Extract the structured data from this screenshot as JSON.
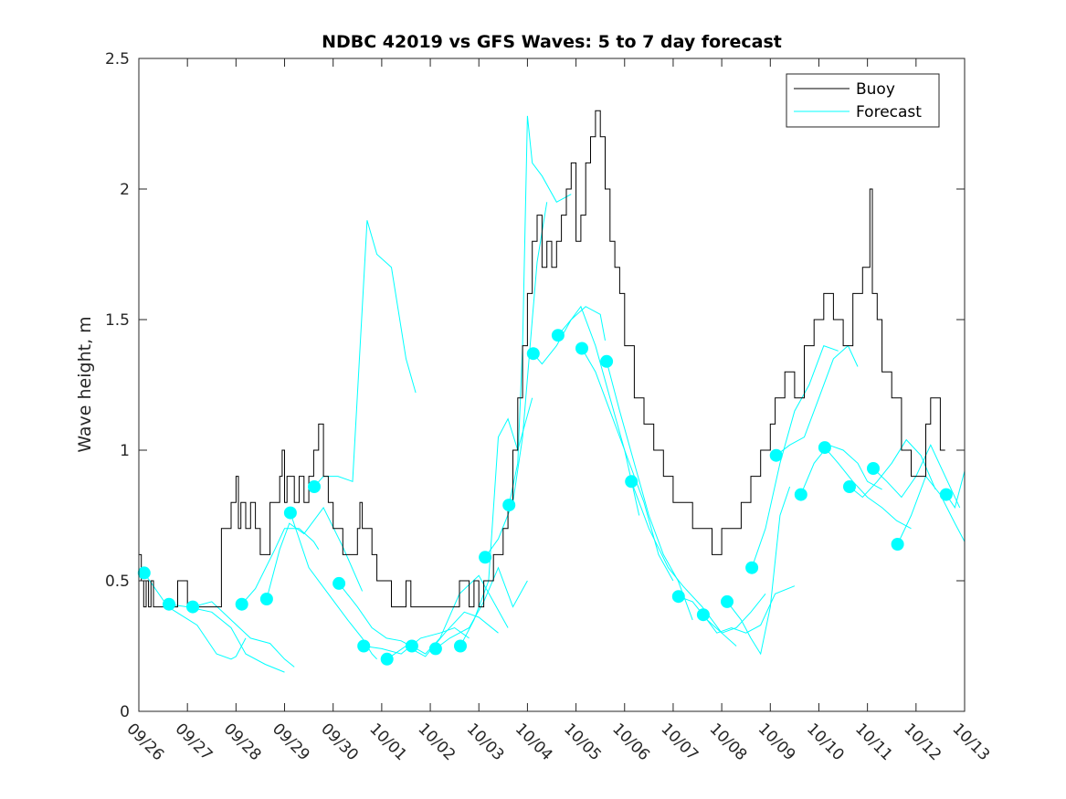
{
  "chart_data": {
    "type": "line",
    "title": "NDBC 42019 vs GFS Waves: 5 to 7 day forecast",
    "xlabel": "",
    "ylabel": "Wave height, m",
    "xlim_days": [
      0,
      17
    ],
    "ylim": [
      0,
      2.5
    ],
    "yticks": [
      0,
      0.5,
      1,
      1.5,
      2,
      2.5
    ],
    "ytick_labels": [
      "0",
      "0.5",
      "1",
      "1.5",
      "2",
      "2.5"
    ],
    "xtick_labels": [
      "09/26",
      "09/27",
      "09/28",
      "09/29",
      "09/30",
      "10/01",
      "10/02",
      "10/03",
      "10/04",
      "10/05",
      "10/06",
      "10/07",
      "10/08",
      "10/09",
      "10/10",
      "10/11",
      "10/12",
      "10/13"
    ],
    "grid": false,
    "legend": {
      "placement": "top-right",
      "entries": [
        {
          "label": "Buoy",
          "color": "#000000"
        },
        {
          "label": "Forecast",
          "color": "#00ffff"
        }
      ]
    },
    "colors": {
      "buoy": "#000000",
      "forecast": "#00ffff",
      "marker": "#00ffff"
    },
    "buoy": {
      "name": "Buoy",
      "x_days": [
        0,
        0.05,
        0.1,
        0.15,
        0.2,
        0.25,
        0.3,
        0.4,
        0.8,
        1.0,
        1.4,
        1.7,
        1.9,
        2.0,
        2.05,
        2.1,
        2.2,
        2.3,
        2.4,
        2.5,
        2.6,
        2.7,
        2.9,
        2.95,
        3.0,
        3.05,
        3.1,
        3.2,
        3.3,
        3.4,
        3.5,
        3.6,
        3.7,
        3.8,
        3.9,
        4.0,
        4.2,
        4.4,
        4.5,
        4.55,
        4.6,
        4.8,
        4.9,
        5.0,
        5.2,
        5.4,
        5.5,
        5.6,
        5.8,
        6.0,
        6.4,
        6.6,
        6.8,
        6.9,
        7.0,
        7.1,
        7.3,
        7.5,
        7.6,
        7.7,
        7.8,
        7.9,
        8.0,
        8.1,
        8.2,
        8.3,
        8.4,
        8.5,
        8.6,
        8.7,
        8.8,
        8.9,
        9.0,
        9.1,
        9.2,
        9.3,
        9.4,
        9.5,
        9.6,
        9.7,
        9.8,
        9.9,
        10.0,
        10.2,
        10.4,
        10.6,
        10.8,
        11.0,
        11.2,
        11.4,
        11.6,
        11.8,
        12.0,
        12.2,
        12.4,
        12.6,
        12.8,
        13.0,
        13.1,
        13.3,
        13.5,
        13.7,
        13.9,
        14.1,
        14.3,
        14.5,
        14.7,
        14.9,
        15.05,
        15.1,
        15.2,
        15.3,
        15.5,
        15.7,
        15.9,
        16.1,
        16.2,
        16.3,
        16.5,
        16.6
      ],
      "values": [
        0.6,
        0.5,
        0.4,
        0.5,
        0.4,
        0.5,
        0.4,
        0.4,
        0.5,
        0.4,
        0.4,
        0.7,
        0.8,
        0.9,
        0.7,
        0.8,
        0.7,
        0.8,
        0.7,
        0.6,
        0.6,
        0.8,
        0.9,
        1.0,
        0.8,
        0.9,
        0.9,
        0.8,
        0.9,
        0.8,
        0.9,
        1.0,
        1.1,
        0.9,
        0.8,
        0.7,
        0.6,
        0.6,
        0.7,
        0.8,
        0.7,
        0.6,
        0.5,
        0.5,
        0.4,
        0.4,
        0.5,
        0.4,
        0.4,
        0.4,
        0.4,
        0.5,
        0.4,
        0.5,
        0.4,
        0.5,
        0.6,
        0.7,
        0.8,
        1.0,
        1.2,
        1.4,
        1.6,
        1.8,
        1.9,
        1.7,
        1.8,
        1.7,
        1.8,
        1.9,
        2.0,
        2.1,
        1.8,
        1.9,
        2.1,
        2.2,
        2.3,
        2.2,
        2.0,
        1.8,
        1.7,
        1.6,
        1.4,
        1.2,
        1.1,
        1.0,
        0.9,
        0.8,
        0.8,
        0.7,
        0.7,
        0.6,
        0.7,
        0.7,
        0.8,
        0.9,
        1.0,
        1.1,
        1.2,
        1.3,
        1.2,
        1.4,
        1.5,
        1.6,
        1.5,
        1.4,
        1.6,
        1.7,
        2.0,
        1.6,
        1.5,
        1.3,
        1.2,
        1.0,
        0.9,
        0.9,
        1.1,
        1.2,
        1.0,
        1.0
      ]
    },
    "forecast_segments": [
      {
        "x_days": [
          0.11,
          0.6,
          1.2,
          1.6,
          1.9,
          2.0,
          2.2
        ],
        "values": [
          0.53,
          0.4,
          0.33,
          0.22,
          0.2,
          0.21,
          0.28
        ]
      },
      {
        "x_days": [
          0.62,
          1.0,
          1.5,
          1.9,
          2.2,
          2.6,
          3.0
        ],
        "values": [
          0.41,
          0.4,
          0.38,
          0.32,
          0.22,
          0.18,
          0.15
        ]
      },
      {
        "x_days": [
          1.11,
          1.5,
          1.9,
          2.3,
          2.7,
          3.0,
          3.2
        ],
        "values": [
          0.4,
          0.42,
          0.35,
          0.28,
          0.26,
          0.2,
          0.17
        ]
      },
      {
        "x_days": [
          2.12,
          2.4,
          2.8,
          3.0,
          3.3,
          3.6,
          3.7
        ],
        "values": [
          0.41,
          0.47,
          0.62,
          0.7,
          0.7,
          0.65,
          0.62
        ]
      },
      {
        "x_days": [
          2.63,
          2.9,
          3.1,
          3.4,
          3.8,
          4.2,
          4.6
        ],
        "values": [
          0.43,
          0.62,
          0.72,
          0.68,
          0.78,
          0.63,
          0.46
        ]
      },
      {
        "x_days": [
          3.12,
          3.5,
          3.9,
          4.3,
          4.6,
          4.8,
          4.9
        ],
        "values": [
          0.76,
          0.55,
          0.45,
          0.35,
          0.28,
          0.22,
          0.2
        ]
      },
      {
        "x_days": [
          3.61,
          3.8,
          4.1,
          4.4,
          4.7,
          4.9,
          5.2,
          5.5,
          5.7
        ],
        "values": [
          0.86,
          0.9,
          0.9,
          0.88,
          1.88,
          1.75,
          1.7,
          1.35,
          1.22
        ]
      },
      {
        "x_days": [
          4.12,
          4.5,
          4.8,
          5.1,
          5.4,
          5.6
        ],
        "values": [
          0.49,
          0.4,
          0.32,
          0.28,
          0.27,
          0.25
        ]
      },
      {
        "x_days": [
          4.63,
          5.0,
          5.4,
          5.8,
          6.2,
          6.5,
          6.8
        ],
        "values": [
          0.25,
          0.24,
          0.22,
          0.28,
          0.3,
          0.32,
          0.28
        ]
      },
      {
        "x_days": [
          5.11,
          5.5,
          5.9,
          6.3,
          6.7,
          7.0,
          7.4
        ],
        "values": [
          0.2,
          0.25,
          0.21,
          0.3,
          0.38,
          0.36,
          0.3
        ]
      },
      {
        "x_days": [
          5.62,
          5.9,
          6.2,
          6.6,
          7.0,
          7.3,
          7.6
        ],
        "values": [
          0.25,
          0.22,
          0.28,
          0.45,
          0.52,
          0.42,
          0.32
        ]
      },
      {
        "x_days": [
          6.11,
          6.4,
          6.8,
          7.1,
          7.4,
          7.7,
          8.0
        ],
        "values": [
          0.24,
          0.28,
          0.32,
          0.42,
          0.55,
          0.4,
          0.5
        ]
      },
      {
        "x_days": [
          6.62,
          6.9,
          7.2,
          7.4,
          7.6,
          7.8,
          8.1
        ],
        "values": [
          0.25,
          0.35,
          0.5,
          1.05,
          1.12,
          1.0,
          1.2
        ]
      },
      {
        "x_days": [
          7.13,
          7.4,
          7.7,
          7.9,
          8.1,
          8.2,
          8.4
        ],
        "values": [
          0.59,
          0.66,
          0.8,
          1.05,
          1.5,
          1.72,
          1.95
        ]
      },
      {
        "x_days": [
          7.62,
          7.8,
          7.9,
          8.0,
          8.1,
          8.3,
          8.6,
          8.9
        ],
        "values": [
          0.79,
          0.95,
          1.4,
          2.28,
          2.1,
          2.05,
          1.95,
          1.98
        ]
      },
      {
        "x_days": [
          8.12,
          8.3,
          8.6,
          8.9,
          9.2,
          9.5,
          9.6
        ],
        "values": [
          1.37,
          1.33,
          1.4,
          1.5,
          1.55,
          1.52,
          1.42
        ]
      },
      {
        "x_days": [
          8.63,
          8.9,
          9.1,
          9.4,
          9.7,
          10.0,
          10.3
        ],
        "values": [
          1.44,
          1.5,
          1.55,
          1.4,
          1.2,
          1.0,
          0.75
        ]
      },
      {
        "x_days": [
          9.12,
          9.4,
          9.7,
          10.0,
          10.4,
          10.7,
          11.0
        ],
        "values": [
          1.39,
          1.3,
          1.15,
          1.0,
          0.8,
          0.6,
          0.5
        ]
      },
      {
        "x_days": [
          9.63,
          9.9,
          10.2,
          10.5,
          10.8,
          11.1,
          11.4
        ],
        "values": [
          1.34,
          1.15,
          0.95,
          0.75,
          0.6,
          0.5,
          0.35
        ]
      },
      {
        "x_days": [
          10.14,
          10.5,
          10.9,
          11.2,
          11.6,
          12.0,
          12.3
        ],
        "values": [
          0.88,
          0.7,
          0.55,
          0.48,
          0.4,
          0.3,
          0.25
        ]
      },
      {
        "x_days": [
          11.11,
          11.4,
          11.7,
          12.0,
          12.3,
          12.6,
          12.9
        ],
        "values": [
          0.44,
          0.42,
          0.35,
          0.3,
          0.32,
          0.38,
          0.45
        ]
      },
      {
        "x_days": [
          11.62,
          11.9,
          12.2,
          12.5,
          12.8,
          13.1,
          13.5
        ],
        "values": [
          0.37,
          0.3,
          0.32,
          0.3,
          0.33,
          0.45,
          0.48
        ]
      },
      {
        "x_days": [
          12.11,
          12.4,
          12.6,
          12.8,
          13.0,
          13.2,
          13.4
        ],
        "values": [
          0.42,
          0.35,
          0.28,
          0.22,
          0.4,
          0.75,
          0.86
        ]
      },
      {
        "x_days": [
          12.62,
          12.9,
          13.2,
          13.5,
          13.8,
          14.1,
          14.4
        ],
        "values": [
          0.55,
          0.7,
          0.95,
          1.15,
          1.25,
          1.4,
          1.38
        ]
      },
      {
        "x_days": [
          13.12,
          13.4,
          13.7,
          14.0,
          14.3,
          14.6,
          14.8
        ],
        "values": [
          0.98,
          1.02,
          1.05,
          1.2,
          1.35,
          1.4,
          1.32
        ]
      },
      {
        "x_days": [
          13.63,
          13.9,
          14.2,
          14.5,
          14.8,
          15.0,
          15.3
        ],
        "values": [
          0.83,
          0.95,
          1.02,
          1.0,
          0.95,
          0.88,
          0.85
        ]
      },
      {
        "x_days": [
          14.12,
          14.4,
          14.7,
          15.0,
          15.3,
          15.6,
          15.9
        ],
        "values": [
          1.01,
          0.95,
          0.88,
          0.82,
          0.78,
          0.73,
          0.7
        ]
      },
      {
        "x_days": [
          14.63,
          14.9,
          15.2,
          15.5,
          15.8,
          16.1,
          16.4
        ],
        "values": [
          0.86,
          0.82,
          0.88,
          0.95,
          1.04,
          0.98,
          0.85
        ]
      },
      {
        "x_days": [
          15.12,
          15.4,
          15.7,
          16.0,
          16.3,
          16.6,
          16.9
        ],
        "values": [
          0.93,
          0.88,
          0.82,
          0.9,
          1.02,
          0.9,
          0.78
        ]
      },
      {
        "x_days": [
          15.62,
          15.9,
          16.2,
          16.5,
          16.8,
          17.0
        ],
        "values": [
          0.64,
          0.75,
          0.9,
          0.83,
          0.72,
          0.65
        ]
      },
      {
        "x_days": [
          16.62,
          16.8,
          17.0
        ],
        "values": [
          0.83,
          0.78,
          0.92
        ]
      }
    ],
    "markers": {
      "x_days": [
        0.11,
        0.62,
        1.11,
        2.12,
        2.63,
        3.12,
        3.61,
        4.12,
        4.63,
        5.11,
        5.62,
        6.11,
        6.62,
        7.13,
        7.62,
        8.12,
        8.63,
        9.12,
        9.63,
        10.14,
        11.11,
        11.62,
        12.11,
        12.62,
        13.12,
        13.63,
        14.12,
        14.63,
        15.12,
        15.62,
        16.62
      ],
      "values": [
        0.53,
        0.41,
        0.4,
        0.41,
        0.43,
        0.76,
        0.86,
        0.49,
        0.25,
        0.2,
        0.25,
        0.24,
        0.25,
        0.59,
        0.79,
        1.37,
        1.44,
        1.39,
        1.34,
        0.88,
        0.44,
        0.37,
        0.42,
        0.55,
        0.98,
        0.83,
        1.01,
        0.86,
        0.93,
        0.64,
        0.83
      ]
    }
  }
}
